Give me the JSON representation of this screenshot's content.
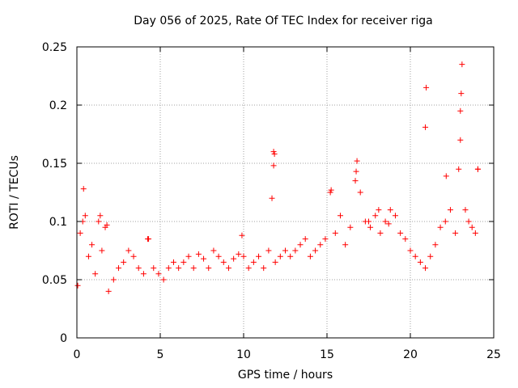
{
  "chart_data": {
    "type": "scatter",
    "title": "Day 056 of 2025, Rate Of TEC Index for receiver riga",
    "xlabel": "GPS time / hours",
    "ylabel": "ROTI / TECUs",
    "xlim": [
      0,
      25
    ],
    "ylim": [
      0,
      0.25
    ],
    "xticks": [
      0,
      5,
      10,
      15,
      20,
      25
    ],
    "xtick_labels": [
      "0",
      "5",
      "10",
      "15",
      "20",
      "25"
    ],
    "yticks": [
      0,
      0.05,
      0.1,
      0.15,
      0.2,
      0.25
    ],
    "ytick_labels": [
      "0",
      "0.05",
      "0.1",
      "0.15",
      "0.2",
      "0.25"
    ],
    "grid": true,
    "marker": "+",
    "color": "#ff0000",
    "series": [
      {
        "x": [
          0.05,
          0.2,
          0.35,
          0.5,
          0.7,
          0.9,
          1.1,
          1.3,
          1.5,
          1.7,
          1.9,
          2.2,
          2.5,
          2.8,
          3.1,
          3.4,
          3.7,
          4.0,
          4.3,
          4.6,
          4.9,
          5.2,
          5.5,
          5.8,
          6.1,
          6.4,
          6.7,
          7.0,
          7.3,
          7.6,
          7.9,
          8.2,
          8.5,
          8.8,
          9.1,
          9.4,
          9.7,
          10.0,
          10.3,
          10.6,
          10.9,
          11.2,
          11.5,
          11.7,
          11.8,
          11.9,
          12.2,
          12.5,
          12.8,
          13.1,
          13.4,
          13.7,
          14.0,
          14.3,
          14.6,
          14.9,
          15.2,
          15.5,
          15.8,
          16.1,
          16.4,
          16.7,
          16.8,
          17.0,
          17.3,
          17.6,
          17.9,
          18.2,
          18.5,
          18.8,
          19.1,
          19.4,
          19.7,
          20.0,
          20.3,
          20.6,
          20.9,
          21.2,
          21.5,
          21.8,
          22.1,
          22.4,
          22.7,
          22.9,
          23.0,
          23.1,
          23.3,
          23.5,
          23.7,
          23.9,
          24.05,
          0.4,
          1.4,
          1.8,
          4.25,
          9.9,
          11.8,
          11.85,
          15.25,
          16.75,
          17.5,
          18.1,
          18.7,
          20.9,
          20.95,
          22.15,
          23.0,
          23.05,
          24.05
        ],
        "y": [
          0.045,
          0.09,
          0.1,
          0.105,
          0.07,
          0.08,
          0.055,
          0.1,
          0.075,
          0.095,
          0.04,
          0.05,
          0.06,
          0.065,
          0.075,
          0.07,
          0.06,
          0.055,
          0.085,
          0.06,
          0.055,
          0.05,
          0.06,
          0.065,
          0.06,
          0.065,
          0.07,
          0.06,
          0.072,
          0.068,
          0.06,
          0.075,
          0.07,
          0.065,
          0.06,
          0.068,
          0.072,
          0.07,
          0.06,
          0.065,
          0.07,
          0.06,
          0.075,
          0.12,
          0.16,
          0.065,
          0.07,
          0.075,
          0.07,
          0.075,
          0.08,
          0.085,
          0.07,
          0.075,
          0.08,
          0.085,
          0.125,
          0.09,
          0.105,
          0.08,
          0.095,
          0.135,
          0.152,
          0.125,
          0.1,
          0.095,
          0.105,
          0.09,
          0.1,
          0.11,
          0.105,
          0.09,
          0.085,
          0.075,
          0.07,
          0.065,
          0.06,
          0.07,
          0.08,
          0.095,
          0.1,
          0.11,
          0.09,
          0.145,
          0.17,
          0.235,
          0.11,
          0.1,
          0.095,
          0.09,
          0.145,
          0.128,
          0.105,
          0.097,
          0.085,
          0.088,
          0.148,
          0.158,
          0.127,
          0.143,
          0.1,
          0.11,
          0.098,
          0.181,
          0.215,
          0.139,
          0.195,
          0.21,
          0.145
        ]
      }
    ]
  }
}
